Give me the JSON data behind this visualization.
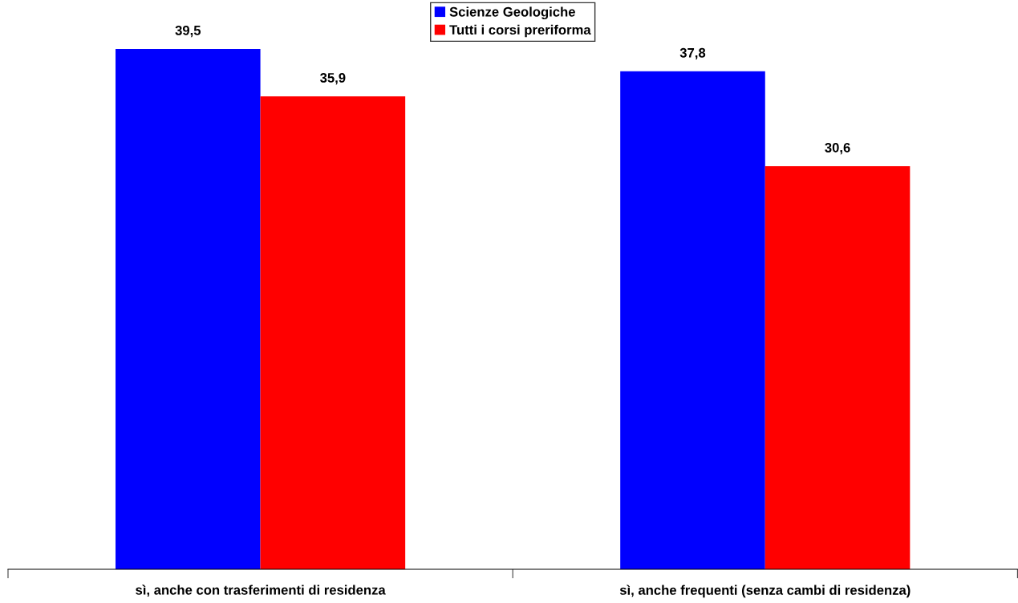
{
  "chart_data": {
    "type": "bar",
    "categories": [
      "sì, anche con trasferimenti di residenza",
      "sì, anche frequenti (senza cambi di residenza)"
    ],
    "series": [
      {
        "name": "Scienze Geologiche",
        "color": "#0000ff",
        "values": [
          39.5,
          37.8
        ],
        "value_labels": [
          "39,5",
          "37,8"
        ]
      },
      {
        "name": "Tutti i corsi preriforma",
        "color": "#ff0000",
        "values": [
          35.9,
          30.6
        ],
        "value_labels": [
          "35,9",
          "30,6"
        ]
      }
    ],
    "relative": false,
    "legend": "top",
    "grid": false
  }
}
